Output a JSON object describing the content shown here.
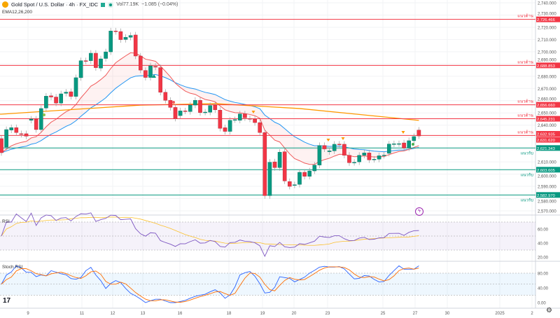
{
  "header": {
    "title": "Gold Spot / U.S. Dollar · 4h · FX_IDC",
    "volume": "Vol77.19K",
    "change": "−1.085 (−0.04%)",
    "indicator": "EMA12,26,200"
  },
  "panes": {
    "rsi_label": "RSI",
    "stoch_label": "Stoch RSI"
  },
  "colors": {
    "up": "#089981",
    "down": "#f23645",
    "ema12": "#f05a5a",
    "ema26": "#2196f3",
    "ema200": "#ff9800",
    "resistance": "#f23645",
    "support": "#089981"
  },
  "price_axis": {
    "ticks": [
      "2,740.000",
      "2,730.000",
      "2,720.000",
      "2,710.000",
      "2,700.000",
      "2,690.000",
      "2,680.000",
      "2,670.000",
      "2,660.000",
      "2,650.000",
      "2,640.000",
      "2,610.000",
      "2,600.000",
      "2,590.000",
      "2,580.000",
      "2,570.000"
    ],
    "current_price": "2,632.935"
  },
  "rsi_axis": [
    "60.00",
    "40.00",
    "20.00"
  ],
  "stoch_axis": [
    "80.00",
    "40.00",
    "0.00"
  ],
  "time_axis": [
    "9",
    "11",
    "12",
    "13",
    "16",
    "18",
    "19",
    "20",
    "23",
    "25",
    "27",
    "30",
    "2025",
    "2"
  ],
  "levels": [
    {
      "price": 2726.466,
      "label": "2,726.466",
      "type": "resistance",
      "text": "แนวต้าน"
    },
    {
      "price": 2688.853,
      "label": "2,688.853",
      "type": "resistance",
      "text": "แนวต้าน"
    },
    {
      "price": 2656.66,
      "label": "2,656.660",
      "type": "resistance",
      "text": "แนวต้าน"
    },
    {
      "price": 2645.231,
      "label": "2,645.231",
      "type": "resistance",
      "text": "แนวต้าน"
    },
    {
      "price": 2631.62,
      "label": "2,631.620",
      "type": "resistance",
      "text": "แนวต้าน"
    },
    {
      "price": 2621.343,
      "label": "2,621.343",
      "type": "support",
      "text": "แนวรับ"
    },
    {
      "price": 2603.605,
      "label": "2,603.605",
      "type": "support",
      "text": "แนวรับ"
    },
    {
      "price": 2582.97,
      "label": "2,582.970",
      "type": "support",
      "text": "แนวรับ"
    }
  ],
  "chart_data": {
    "type": "candlestick",
    "symbol": "XAUUSD 4h",
    "ylim": [
      2570,
      2740
    ],
    "candles_oc": [
      [
        2629,
        2617.5
      ],
      [
        2622,
        2636.4
      ],
      [
        2636,
        2638
      ],
      [
        2638,
        2634
      ],
      [
        2633,
        2632.5
      ],
      [
        2633,
        2631
      ],
      [
        2644,
        2645
      ],
      [
        2645,
        2636.4
      ],
      [
        2636.4,
        2653.6
      ],
      [
        2654,
        2663.7
      ],
      [
        2664,
        2663
      ],
      [
        2663,
        2658
      ],
      [
        2658,
        2665.6
      ],
      [
        2666,
        2667
      ],
      [
        2667.3,
        2663.5
      ],
      [
        2663.5,
        2678.8
      ],
      [
        2678.8,
        2692.7
      ],
      [
        2692.7,
        2692.3
      ],
      [
        2692.7,
        2698.8
      ],
      [
        2698.8,
        2687
      ],
      [
        2686.6,
        2694.2
      ],
      [
        2694.5,
        2699.9
      ],
      [
        2699.9,
        2717
      ],
      [
        2717,
        2716.5
      ],
      [
        2716.5,
        2709.9
      ],
      [
        2710,
        2711.8
      ],
      [
        2711.8,
        2713.3
      ],
      [
        2713.7,
        2696.5
      ],
      [
        2696.5,
        2685
      ],
      [
        2684.7,
        2679
      ],
      [
        2679,
        2688.5
      ],
      [
        2688.1,
        2687.4
      ],
      [
        2687,
        2666.9
      ],
      [
        2666.9,
        2660.3
      ],
      [
        2660.3,
        2654.5
      ],
      [
        2654.5,
        2645.6
      ],
      [
        2647.8,
        2651.7
      ],
      [
        2651.7,
        2651.5
      ],
      [
        2651.1,
        2656.4
      ],
      [
        2656.4,
        2660.3
      ],
      [
        2660.3,
        2650.3
      ],
      [
        2650.6,
        2650.7
      ],
      [
        2650.6,
        2656
      ],
      [
        2656.4,
        2652.6
      ],
      [
        2652.3,
        2637.4
      ],
      [
        2637.9,
        2634.9
      ],
      [
        2634.9,
        2644
      ],
      [
        2644.4,
        2644.5
      ],
      [
        2644,
        2649.2
      ],
      [
        2649.2,
        2646
      ],
      [
        2645.4,
        2645
      ],
      [
        2645,
        2642.1
      ],
      [
        2642.1,
        2634
      ],
      [
        2634,
        2582.4
      ],
      [
        2582.4,
        2609.7
      ],
      [
        2610,
        2605.3
      ],
      [
        2605.3,
        2617.9
      ],
      [
        2618.3,
        2594.4
      ],
      [
        2593.9,
        2590
      ],
      [
        2591,
        2591.3
      ],
      [
        2591.6,
        2601.5
      ],
      [
        2601.5,
        2598.2
      ],
      [
        2598.2,
        2602.6
      ],
      [
        2602.6,
        2607.4
      ],
      [
        2607.4,
        2623.4
      ],
      [
        2623.4,
        2620.6
      ],
      [
        2618.3,
        2619
      ],
      [
        2619,
        2624.4
      ],
      [
        2624.5,
        2624.4
      ],
      [
        2624.4,
        2615.4
      ],
      [
        2615.4,
        2609.3
      ],
      [
        2609.5,
        2609.7
      ],
      [
        2610,
        2615.4
      ],
      [
        2615.4,
        2617.3
      ],
      [
        2617.3,
        2611.6
      ],
      [
        2612,
        2612.2
      ],
      [
        2612.2,
        2615
      ],
      [
        2615.3,
        2615.5
      ],
      [
        2617,
        2624.6
      ],
      [
        2624.6,
        2624.8
      ],
      [
        2624.8,
        2624.9
      ],
      [
        2625.5,
        2621.3
      ],
      [
        2621.3,
        2627.3
      ],
      [
        2627.3,
        2630.7
      ],
      [
        2636,
        2631.2
      ]
    ],
    "ema200_points": [
      [
        0,
        2649
      ],
      [
        28,
        2656.4
      ],
      [
        43,
        2657.6
      ],
      [
        60,
        2653.6
      ],
      [
        84,
        2643.9
      ]
    ]
  }
}
